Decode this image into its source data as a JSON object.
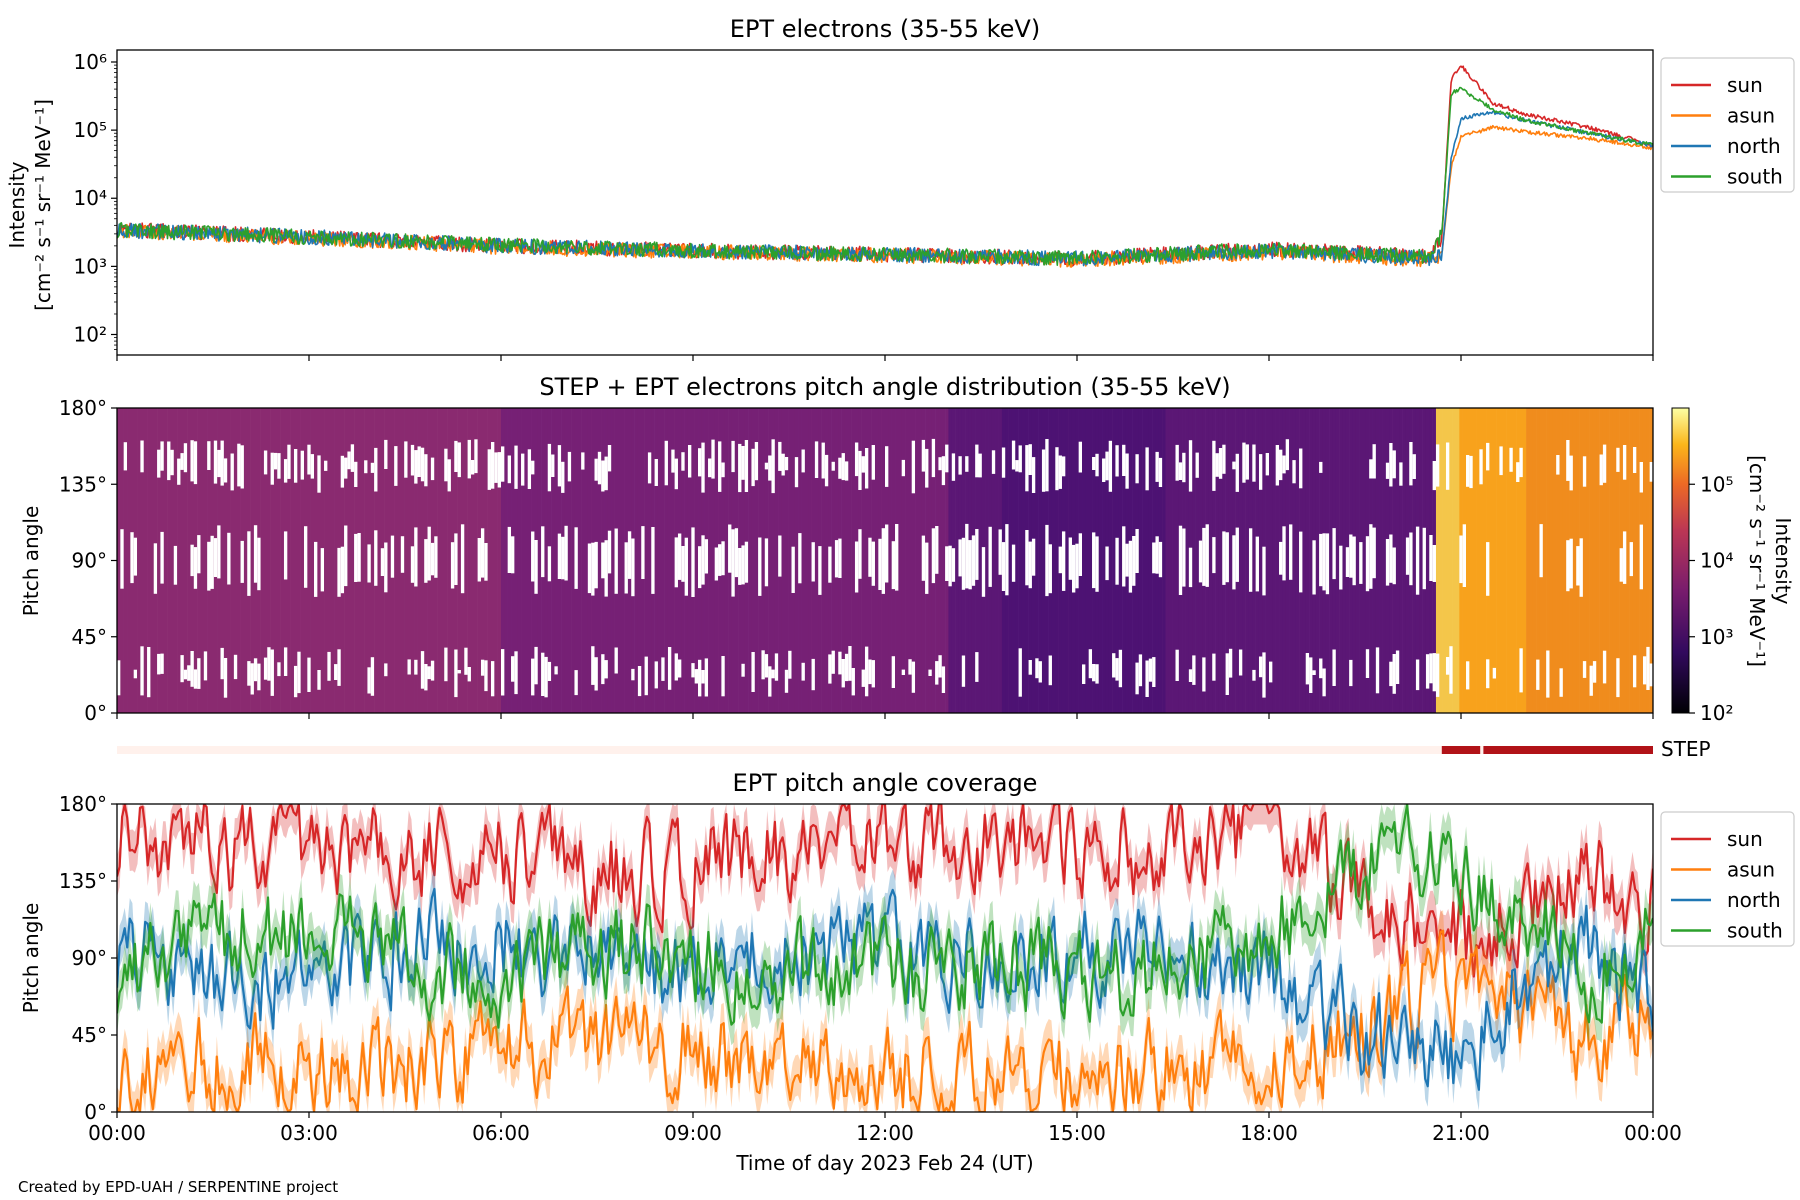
{
  "credit": "Created by EPD-UAH / SERPENTINE project",
  "xlabel": "Time of day 2023 Feb 24 (UT)",
  "x_ticks": [
    "00:00",
    "03:00",
    "06:00",
    "09:00",
    "12:00",
    "15:00",
    "18:00",
    "21:00",
    "00:00"
  ],
  "series_colors": {
    "sun": "#d62728",
    "asun": "#ff7f0e",
    "north": "#1f77b4",
    "south": "#2ca02c"
  },
  "chart_data": [
    {
      "type": "line",
      "title": "EPT electrons (35-55 keV)",
      "ylabel_line1": "Intensity",
      "ylabel_line2": "[cm⁻² s⁻¹ sr⁻¹ MeV⁻¹]",
      "yscale": "log",
      "ylim": [
        50,
        1500000
      ],
      "xlim_hours": [
        0,
        24
      ],
      "y_ticks": [
        {
          "value": 100,
          "label": "10²"
        },
        {
          "value": 1000,
          "label": "10³"
        },
        {
          "value": 10000,
          "label": "10⁴"
        },
        {
          "value": 100000,
          "label": "10⁵"
        },
        {
          "value": 1000000,
          "label": "10⁶"
        }
      ],
      "legend": [
        "sun",
        "asun",
        "north",
        "south"
      ],
      "legend_position": "outside-right",
      "series": [
        {
          "name": "sun",
          "x_hours": [
            0,
            3,
            6,
            9,
            12,
            15,
            18,
            20.5,
            20.7,
            20.85,
            21.0,
            21.5,
            22,
            23,
            24
          ],
          "values": [
            3500,
            2700,
            2000,
            1700,
            1500,
            1300,
            1800,
            1400,
            2500,
            600000,
            900000,
            250000,
            170000,
            110000,
            60000
          ]
        },
        {
          "name": "asun",
          "x_hours": [
            0,
            3,
            6,
            9,
            12,
            15,
            18,
            20.5,
            20.7,
            20.85,
            21.0,
            21.5,
            22,
            23,
            24
          ],
          "values": [
            3300,
            2600,
            1900,
            1650,
            1450,
            1250,
            1600,
            1250,
            1400,
            30000,
            80000,
            110000,
            95000,
            75000,
            55000
          ]
        },
        {
          "name": "north",
          "x_hours": [
            0,
            3,
            6,
            9,
            12,
            15,
            18,
            20.5,
            20.7,
            20.85,
            21.0,
            21.5,
            22,
            23,
            24
          ],
          "values": [
            3400,
            2700,
            2000,
            1700,
            1500,
            1300,
            1700,
            1300,
            1450,
            40000,
            150000,
            180000,
            140000,
            90000,
            60000
          ]
        },
        {
          "name": "south",
          "x_hours": [
            0,
            3,
            6,
            9,
            12,
            15,
            18,
            20.5,
            20.7,
            20.85,
            21.0,
            21.5,
            22,
            23,
            24
          ],
          "values": [
            3400,
            2700,
            2050,
            1700,
            1500,
            1300,
            1800,
            1350,
            3000,
            350000,
            400000,
            200000,
            140000,
            90000,
            60000
          ]
        }
      ]
    },
    {
      "type": "heatmap",
      "title": "STEP + EPT electrons pitch angle distribution (35-55 keV)",
      "ylabel": "Pitch angle",
      "ylim": [
        0,
        180
      ],
      "y_ticks": [
        "0°",
        "45°",
        "90°",
        "135°",
        "180°"
      ],
      "colorbar_label": "Intensity",
      "colorbar_units": "[cm⁻² s⁻¹ sr⁻¹ MeV⁻¹]",
      "colorbar_scale": "log",
      "colorbar_range": [
        100,
        1000000
      ],
      "colorbar_ticks": [
        {
          "value": 100,
          "label": "10²"
        },
        {
          "value": 1000,
          "label": "10³"
        },
        {
          "value": 10000,
          "label": "10⁴"
        },
        {
          "value": 100000,
          "label": "10⁵"
        }
      ],
      "colormap": "inferno",
      "step_bar_label": "STEP",
      "step_bar_active_hours": [
        [
          20.7,
          21.3
        ],
        [
          21.35,
          24
        ]
      ]
    },
    {
      "type": "line",
      "title": "EPT pitch angle coverage",
      "ylabel": "Pitch angle",
      "ylim": [
        0,
        180
      ],
      "y_ticks": [
        "0°",
        "45°",
        "90°",
        "135°",
        "180°"
      ],
      "legend": [
        "sun",
        "asun",
        "north",
        "south"
      ],
      "legend_position": "outside-right",
      "series": [
        {
          "name": "sun",
          "x_hours": [
            0,
            2,
            4,
            6,
            8,
            10,
            12,
            14,
            16,
            18,
            19.5,
            20.5,
            21,
            22,
            23,
            24
          ],
          "values": [
            160,
            150,
            155,
            150,
            140,
            150,
            155,
            160,
            150,
            165,
            130,
            110,
            100,
            120,
            135,
            120
          ]
        },
        {
          "name": "asun",
          "x_hours": [
            0,
            2,
            4,
            6,
            8,
            10,
            12,
            14,
            16,
            18,
            19.5,
            20.5,
            21,
            22,
            23,
            24
          ],
          "values": [
            25,
            30,
            25,
            35,
            40,
            30,
            25,
            20,
            25,
            20,
            50,
            65,
            75,
            60,
            45,
            55
          ]
        },
        {
          "name": "north",
          "x_hours": [
            0,
            2,
            4,
            6,
            8,
            10,
            12,
            14,
            16,
            18,
            19.5,
            20.5,
            21,
            22,
            23,
            24
          ],
          "values": [
            95,
            75,
            90,
            100,
            80,
            90,
            95,
            95,
            100,
            80,
            45,
            35,
            30,
            80,
            95,
            70
          ]
        },
        {
          "name": "south",
          "x_hours": [
            0,
            2,
            4,
            6,
            8,
            10,
            12,
            14,
            16,
            18,
            19.5,
            20.5,
            21,
            22,
            23,
            24
          ],
          "values": [
            80,
            105,
            95,
            80,
            95,
            85,
            80,
            85,
            80,
            105,
            145,
            150,
            140,
            110,
            85,
            100
          ]
        }
      ]
    }
  ]
}
